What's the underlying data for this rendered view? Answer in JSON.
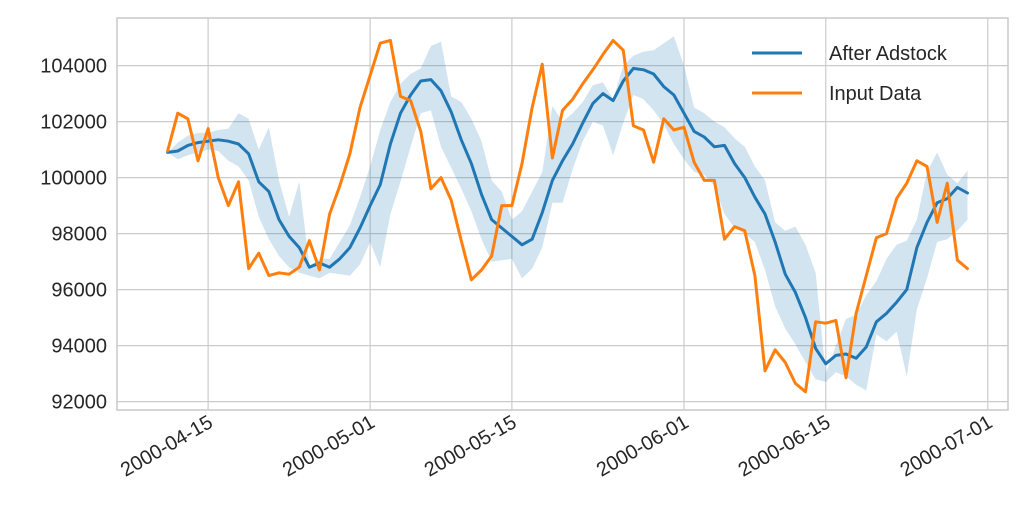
{
  "chart_data": {
    "type": "line",
    "title": "",
    "xlabel": "",
    "ylabel": "",
    "x_start": "2000-04-11",
    "x_step_days": 1,
    "xlim": [
      "2000-04-06",
      "2000-07-03"
    ],
    "ylim": [
      91700,
      105700
    ],
    "x_ticks": [
      "2000-04-15",
      "2000-05-01",
      "2000-05-15",
      "2000-06-01",
      "2000-06-15",
      "2000-07-01"
    ],
    "y_ticks": [
      92000,
      94000,
      96000,
      98000,
      100000,
      102000,
      104000
    ],
    "y_tick_labels": [
      "92000",
      "94000",
      "96000",
      "98000",
      "100000",
      "102000",
      "104000"
    ],
    "grid": true,
    "legend": {
      "placement": "top-right"
    },
    "series": [
      {
        "name": "After Adstock",
        "color": "#1f77b4",
        "values": [
          100900,
          100950,
          101150,
          101250,
          101300,
          101350,
          101300,
          101200,
          100850,
          99850,
          99500,
          98500,
          97900,
          97500,
          96800,
          96950,
          96800,
          97100,
          97500,
          98200,
          99000,
          99750,
          101200,
          102300,
          102950,
          103450,
          103500,
          103100,
          102350,
          101350,
          100500,
          99400,
          98500,
          98200,
          97900,
          97600,
          97800,
          98750,
          99900,
          100600,
          101200,
          101950,
          102650,
          103000,
          102750,
          103450,
          103900,
          103850,
          103700,
          103250,
          102950,
          102300,
          101650,
          101450,
          101100,
          101150,
          100500,
          100000,
          99300,
          98700,
          97700,
          96550,
          95900,
          95000,
          93900,
          93350,
          93650,
          93700,
          93550,
          93950,
          94850,
          95150,
          95550,
          96000,
          97500,
          98400,
          99100,
          99250,
          99650,
          99450
        ]
      },
      {
        "name": "Input Data",
        "color": "#ff7f0e",
        "values": [
          100950,
          102300,
          102100,
          100600,
          101750,
          100000,
          99000,
          99850,
          96750,
          97300,
          96500,
          96600,
          96550,
          96800,
          97750,
          96700,
          98700,
          99700,
          100850,
          102500,
          103650,
          104800,
          104900,
          102900,
          102750,
          101650,
          99600,
          100000,
          99200,
          97750,
          96350,
          96700,
          97200,
          99000,
          99000,
          100500,
          102500,
          104050,
          100700,
          102400,
          102800,
          103350,
          103850,
          104400,
          104900,
          104550,
          101850,
          101700,
          100550,
          102100,
          101700,
          101800,
          100550,
          99900,
          99900,
          97800,
          98250,
          98100,
          96500,
          93100,
          93850,
          93400,
          92650,
          92350,
          94850,
          94800,
          94900,
          92850,
          95150,
          96500,
          97850,
          98000,
          99250,
          99800,
          100600,
          100400,
          98400,
          99800,
          97050,
          96750
        ]
      }
    ],
    "band": {
      "color": "#1f77b4",
      "opacity": 0.2,
      "lower": [
        100900,
        100650,
        100800,
        100900,
        101000,
        100950,
        100600,
        100400,
        99900,
        98600,
        97800,
        97200,
        96800,
        96600,
        96500,
        96400,
        96600,
        96550,
        96500,
        96900,
        97700,
        96800,
        98700,
        99850,
        101100,
        102300,
        102400,
        101100,
        100350,
        99600,
        98800,
        97800,
        97000,
        97050,
        97100,
        96400,
        96750,
        97500,
        99100,
        99100,
        100300,
        101300,
        102000,
        101850,
        100800,
        101950,
        102950,
        102800,
        102400,
        101900,
        101200,
        100650,
        100200,
        100100,
        99700,
        98700,
        98200,
        98000,
        97700,
        96700,
        95400,
        94600,
        94050,
        93400,
        92800,
        92700,
        93050,
        92900,
        92600,
        92400,
        94400,
        94150,
        94500,
        92900,
        95300,
        96400,
        97700,
        97800,
        98100,
        98500
      ],
      "upper": [
        100900,
        101250,
        101500,
        101600,
        101600,
        101700,
        101750,
        102300,
        102100,
        101000,
        101800,
        99900,
        98600,
        99850,
        96850,
        97100,
        97100,
        97700,
        98300,
        99300,
        100400,
        101700,
        102700,
        103350,
        103700,
        103900,
        104700,
        104850,
        102900,
        102700,
        102100,
        101300,
        99900,
        99500,
        98500,
        98800,
        99500,
        100200,
        102550,
        102000,
        102300,
        102700,
        103300,
        103400,
        102800,
        104000,
        104350,
        104500,
        104550,
        104800,
        105050,
        104000,
        102500,
        102300,
        102000,
        101800,
        101400,
        101100,
        100400,
        99900,
        98400,
        98100,
        98250,
        97600,
        96600,
        93000,
        94000,
        94950,
        95100,
        95800,
        96300,
        97100,
        97600,
        97750,
        98500,
        100200,
        100900,
        100100,
        99800,
        100250
      ]
    }
  }
}
